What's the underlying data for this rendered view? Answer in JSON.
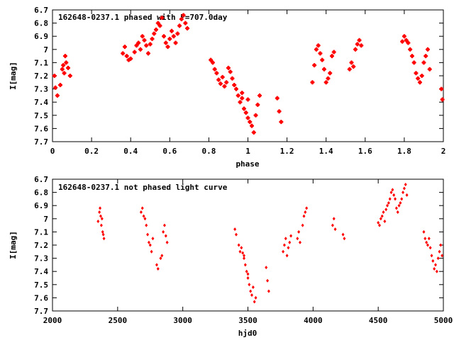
{
  "chart_data": [
    {
      "type": "scatter",
      "title": "162648-0237.1 phased with P=707.0day",
      "xlabel": "phase",
      "ylabel": "I[mag]",
      "xlim": [
        0,
        2
      ],
      "ylim": [
        7.7,
        6.7
      ],
      "y_inverted": true,
      "grid": false,
      "marker_color": "#ff0000",
      "x_ticks": [
        "0",
        "0.2",
        "0.4",
        "0.6",
        "0.8",
        "1",
        "1.2",
        "1.4",
        "1.6",
        "1.8",
        "2"
      ],
      "y_ticks": [
        "6.7",
        "6.8",
        "6.9",
        "7",
        "7.1",
        "7.2",
        "7.3",
        "7.4",
        "7.5",
        "7.6",
        "7.7"
      ],
      "series": [
        {
          "points": [
            [
              0.01,
              7.2
            ],
            [
              0.015,
              7.29
            ],
            [
              0.025,
              7.35
            ],
            [
              0.04,
              7.27
            ],
            [
              0.05,
              7.15
            ],
            [
              0.055,
              7.12
            ],
            [
              0.06,
              7.18
            ],
            [
              0.065,
              7.05
            ],
            [
              0.07,
              7.1
            ],
            [
              0.08,
              7.14
            ],
            [
              0.09,
              7.2
            ],
            [
              0.36,
              7.03
            ],
            [
              0.37,
              6.98
            ],
            [
              0.38,
              7.05
            ],
            [
              0.39,
              7.08
            ],
            [
              0.4,
              7.07
            ],
            [
              0.42,
              7.02
            ],
            [
              0.43,
              6.97
            ],
            [
              0.44,
              6.95
            ],
            [
              0.45,
              7.0
            ],
            [
              0.46,
              6.9
            ],
            [
              0.47,
              6.93
            ],
            [
              0.48,
              6.97
            ],
            [
              0.49,
              7.03
            ],
            [
              0.5,
              6.96
            ],
            [
              0.51,
              6.92
            ],
            [
              0.52,
              6.88
            ],
            [
              0.53,
              6.85
            ],
            [
              0.54,
              6.8
            ],
            [
              0.55,
              6.82
            ],
            [
              0.56,
              6.76
            ],
            [
              0.57,
              6.9
            ],
            [
              0.58,
              6.95
            ],
            [
              0.59,
              6.98
            ],
            [
              0.6,
              6.92
            ],
            [
              0.61,
              6.86
            ],
            [
              0.62,
              6.9
            ],
            [
              0.63,
              6.95
            ],
            [
              0.64,
              6.88
            ],
            [
              0.65,
              6.82
            ],
            [
              0.66,
              6.77
            ],
            [
              0.67,
              6.74
            ],
            [
              0.68,
              6.8
            ],
            [
              0.69,
              6.84
            ],
            [
              0.81,
              7.08
            ],
            [
              0.82,
              7.1
            ],
            [
              0.83,
              7.15
            ],
            [
              0.84,
              7.18
            ],
            [
              0.85,
              7.23
            ],
            [
              0.86,
              7.26
            ],
            [
              0.87,
              7.21
            ],
            [
              0.88,
              7.28
            ],
            [
              0.89,
              7.25
            ],
            [
              0.9,
              7.14
            ],
            [
              0.91,
              7.17
            ],
            [
              0.92,
              7.22
            ],
            [
              0.93,
              7.27
            ],
            [
              0.94,
              7.3
            ],
            [
              0.95,
              7.35
            ],
            [
              0.96,
              7.4
            ],
            [
              0.97,
              7.37
            ],
            [
              0.98,
              7.45
            ],
            [
              0.99,
              7.48
            ],
            [
              1.0,
              7.52
            ],
            [
              1.01,
              7.55
            ],
            [
              1.02,
              7.58
            ],
            [
              1.03,
              7.63
            ],
            [
              1.04,
              7.5
            ],
            [
              1.05,
              7.42
            ],
            [
              1.06,
              7.35
            ],
            [
              0.97,
              7.33
            ],
            [
              1.0,
              7.38
            ],
            [
              1.15,
              7.37
            ],
            [
              1.16,
              7.47
            ],
            [
              1.17,
              7.55
            ],
            [
              1.33,
              7.25
            ],
            [
              1.34,
              7.12
            ],
            [
              1.35,
              7.0
            ],
            [
              1.36,
              6.97
            ],
            [
              1.37,
              7.03
            ],
            [
              1.38,
              7.08
            ],
            [
              1.39,
              7.15
            ],
            [
              1.4,
              7.25
            ],
            [
              1.41,
              7.22
            ],
            [
              1.42,
              7.18
            ],
            [
              1.43,
              7.05
            ],
            [
              1.44,
              7.02
            ],
            [
              1.52,
              7.15
            ],
            [
              1.53,
              7.1
            ],
            [
              1.54,
              7.13
            ],
            [
              1.55,
              7.0
            ],
            [
              1.56,
              6.96
            ],
            [
              1.57,
              6.93
            ],
            [
              1.58,
              6.97
            ],
            [
              1.79,
              6.94
            ],
            [
              1.8,
              6.9
            ],
            [
              1.81,
              6.93
            ],
            [
              1.82,
              6.95
            ],
            [
              1.83,
              7.0
            ],
            [
              1.84,
              7.05
            ],
            [
              1.85,
              7.1
            ],
            [
              1.86,
              7.18
            ],
            [
              1.87,
              7.22
            ],
            [
              1.88,
              7.25
            ],
            [
              1.89,
              7.2
            ],
            [
              1.9,
              7.1
            ],
            [
              1.91,
              7.05
            ],
            [
              1.92,
              7.0
            ],
            [
              1.93,
              7.15
            ],
            [
              1.99,
              7.3
            ],
            [
              1.995,
              7.38
            ]
          ]
        }
      ]
    },
    {
      "type": "scatter",
      "title": "162648-0237.1 not phased light curve",
      "xlabel": "hjd0",
      "ylabel": "I[mag]",
      "xlim": [
        2000,
        5000
      ],
      "ylim": [
        7.7,
        6.7
      ],
      "y_inverted": true,
      "grid": false,
      "marker_color": "#ff0000",
      "x_ticks": [
        "2000",
        "2500",
        "3000",
        "3500",
        "4000",
        "4500",
        "5000"
      ],
      "y_ticks": [
        "6.7",
        "6.8",
        "6.9",
        "7",
        "7.1",
        "7.2",
        "7.3",
        "7.4",
        "7.5",
        "7.6",
        "7.7"
      ],
      "series": [
        {
          "points": [
            [
              2350,
              7.02
            ],
            [
              2360,
              6.95
            ],
            [
              2365,
              6.92
            ],
            [
              2370,
              6.98
            ],
            [
              2375,
              7.05
            ],
            [
              2380,
              7.0
            ],
            [
              2385,
              7.1
            ],
            [
              2390,
              7.12
            ],
            [
              2395,
              7.15
            ],
            [
              2680,
              6.95
            ],
            [
              2690,
              6.92
            ],
            [
              2700,
              6.98
            ],
            [
              2710,
              7.0
            ],
            [
              2720,
              7.05
            ],
            [
              2730,
              7.12
            ],
            [
              2740,
              7.18
            ],
            [
              2750,
              7.2
            ],
            [
              2760,
              7.25
            ],
            [
              2770,
              7.15
            ],
            [
              2800,
              7.35
            ],
            [
              2810,
              7.38
            ],
            [
              2830,
              7.3
            ],
            [
              2840,
              7.28
            ],
            [
              2850,
              7.1
            ],
            [
              2860,
              7.05
            ],
            [
              2870,
              7.13
            ],
            [
              2880,
              7.18
            ],
            [
              3400,
              7.08
            ],
            [
              3410,
              7.12
            ],
            [
              3430,
              7.2
            ],
            [
              3440,
              7.25
            ],
            [
              3450,
              7.22
            ],
            [
              3460,
              7.26
            ],
            [
              3470,
              7.3
            ],
            [
              3480,
              7.35
            ],
            [
              3490,
              7.4
            ],
            [
              3500,
              7.45
            ],
            [
              3510,
              7.5
            ],
            [
              3520,
              7.55
            ],
            [
              3530,
              7.58
            ],
            [
              3540,
              7.52
            ],
            [
              3550,
              7.63
            ],
            [
              3560,
              7.6
            ],
            [
              3470,
              7.28
            ],
            [
              3500,
              7.42
            ],
            [
              3640,
              7.37
            ],
            [
              3650,
              7.47
            ],
            [
              3660,
              7.55
            ],
            [
              3770,
              7.25
            ],
            [
              3780,
              7.2
            ],
            [
              3790,
              7.15
            ],
            [
              3800,
              7.28
            ],
            [
              3810,
              7.22
            ],
            [
              3820,
              7.18
            ],
            [
              3830,
              7.13
            ],
            [
              3880,
              7.15
            ],
            [
              3890,
              7.1
            ],
            [
              3900,
              7.18
            ],
            [
              3920,
              7.05
            ],
            [
              3930,
              6.98
            ],
            [
              3940,
              6.95
            ],
            [
              3950,
              6.92
            ],
            [
              4150,
              7.05
            ],
            [
              4160,
              7.0
            ],
            [
              4170,
              7.08
            ],
            [
              4230,
              7.12
            ],
            [
              4240,
              7.15
            ],
            [
              4500,
              7.03
            ],
            [
              4510,
              7.05
            ],
            [
              4520,
              7.0
            ],
            [
              4530,
              6.98
            ],
            [
              4540,
              6.95
            ],
            [
              4550,
              7.02
            ],
            [
              4560,
              6.93
            ],
            [
              4570,
              6.9
            ],
            [
              4580,
              6.88
            ],
            [
              4590,
              6.85
            ],
            [
              4600,
              6.8
            ],
            [
              4610,
              6.78
            ],
            [
              4620,
              6.82
            ],
            [
              4630,
              6.85
            ],
            [
              4640,
              6.92
            ],
            [
              4650,
              6.95
            ],
            [
              4660,
              6.9
            ],
            [
              4670,
              6.88
            ],
            [
              4680,
              6.85
            ],
            [
              4690,
              6.8
            ],
            [
              4700,
              6.77
            ],
            [
              4710,
              6.74
            ],
            [
              4720,
              6.82
            ],
            [
              4850,
              7.1
            ],
            [
              4860,
              7.15
            ],
            [
              4870,
              7.18
            ],
            [
              4880,
              7.2
            ],
            [
              4890,
              7.15
            ],
            [
              4900,
              7.22
            ],
            [
              4910,
              7.28
            ],
            [
              4920,
              7.32
            ],
            [
              4930,
              7.38
            ],
            [
              4940,
              7.35
            ],
            [
              4950,
              7.4
            ],
            [
              4960,
              7.3
            ],
            [
              4970,
              7.25
            ],
            [
              4980,
              7.2
            ],
            [
              4990,
              7.28
            ]
          ]
        }
      ]
    }
  ]
}
